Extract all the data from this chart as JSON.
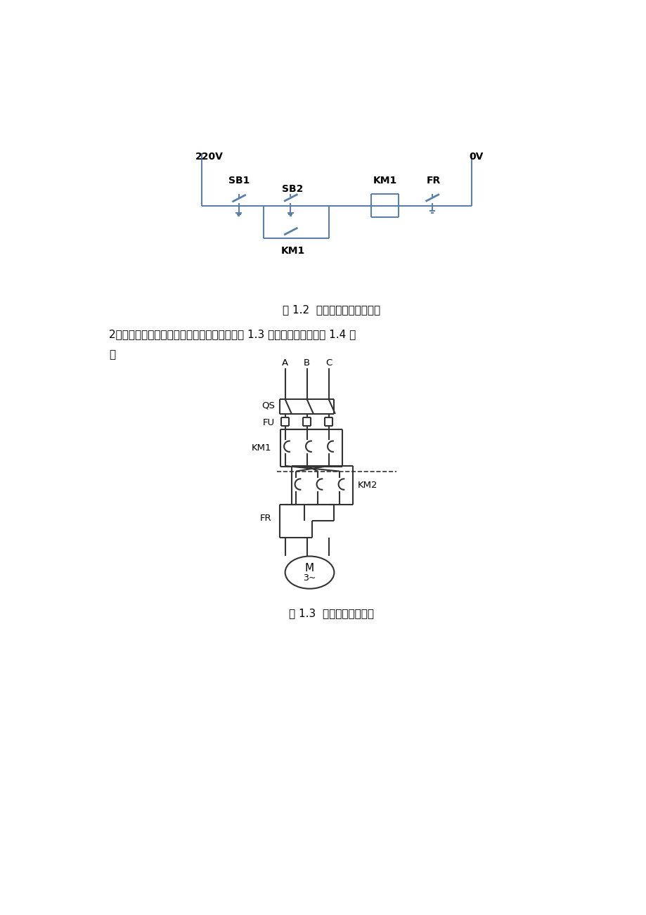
{
  "bg_color": "#ffffff",
  "c1": "#5a7fa8",
  "c2": "#333333",
  "fig1_caption": "图 1.2  单向连续运行控制电路",
  "fig2_caption": "图 1.3  正反转控制主电路",
  "para_line1": "2、电机的正反转控制一双重互锁，主电路如图 1.3 所示，控制电路如图 1.4 所",
  "para_line2": "示"
}
